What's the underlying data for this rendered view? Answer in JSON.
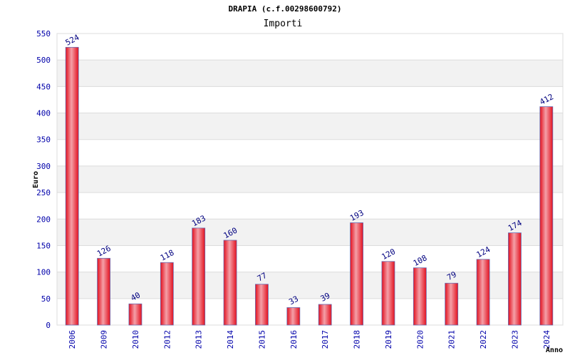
{
  "chart_data": {
    "type": "bar",
    "title": "DRAPIA (c.f.00298600792)",
    "subtitle": "Importi",
    "xlabel": "Anno",
    "ylabel": "Euro",
    "ylim": [
      0,
      550
    ],
    "yticks": [
      0,
      50,
      100,
      150,
      200,
      250,
      300,
      350,
      400,
      450,
      500,
      550
    ],
    "grid": true,
    "categories": [
      "2006",
      "2009",
      "2010",
      "2012",
      "2013",
      "2014",
      "2015",
      "2016",
      "2017",
      "2018",
      "2019",
      "2020",
      "2021",
      "2022",
      "2023",
      "2024"
    ],
    "values": [
      524,
      126,
      40,
      118,
      183,
      160,
      77,
      33,
      39,
      193,
      120,
      108,
      79,
      124,
      174,
      412
    ],
    "data_labels": [
      "524",
      "126",
      "40",
      "118",
      "183",
      "160",
      "77",
      "33",
      "39",
      "193",
      "120",
      "108",
      "79",
      "124",
      "174",
      "412"
    ]
  },
  "colors": {
    "bar_center": "#f4a0a8",
    "bar_edge": "#e3101e",
    "bar_outline": "#6a6ab0",
    "band": "#f2f2f2",
    "grid": "#dcdcdc",
    "tick_text": "#0000aa",
    "label_text": "#000080"
  }
}
